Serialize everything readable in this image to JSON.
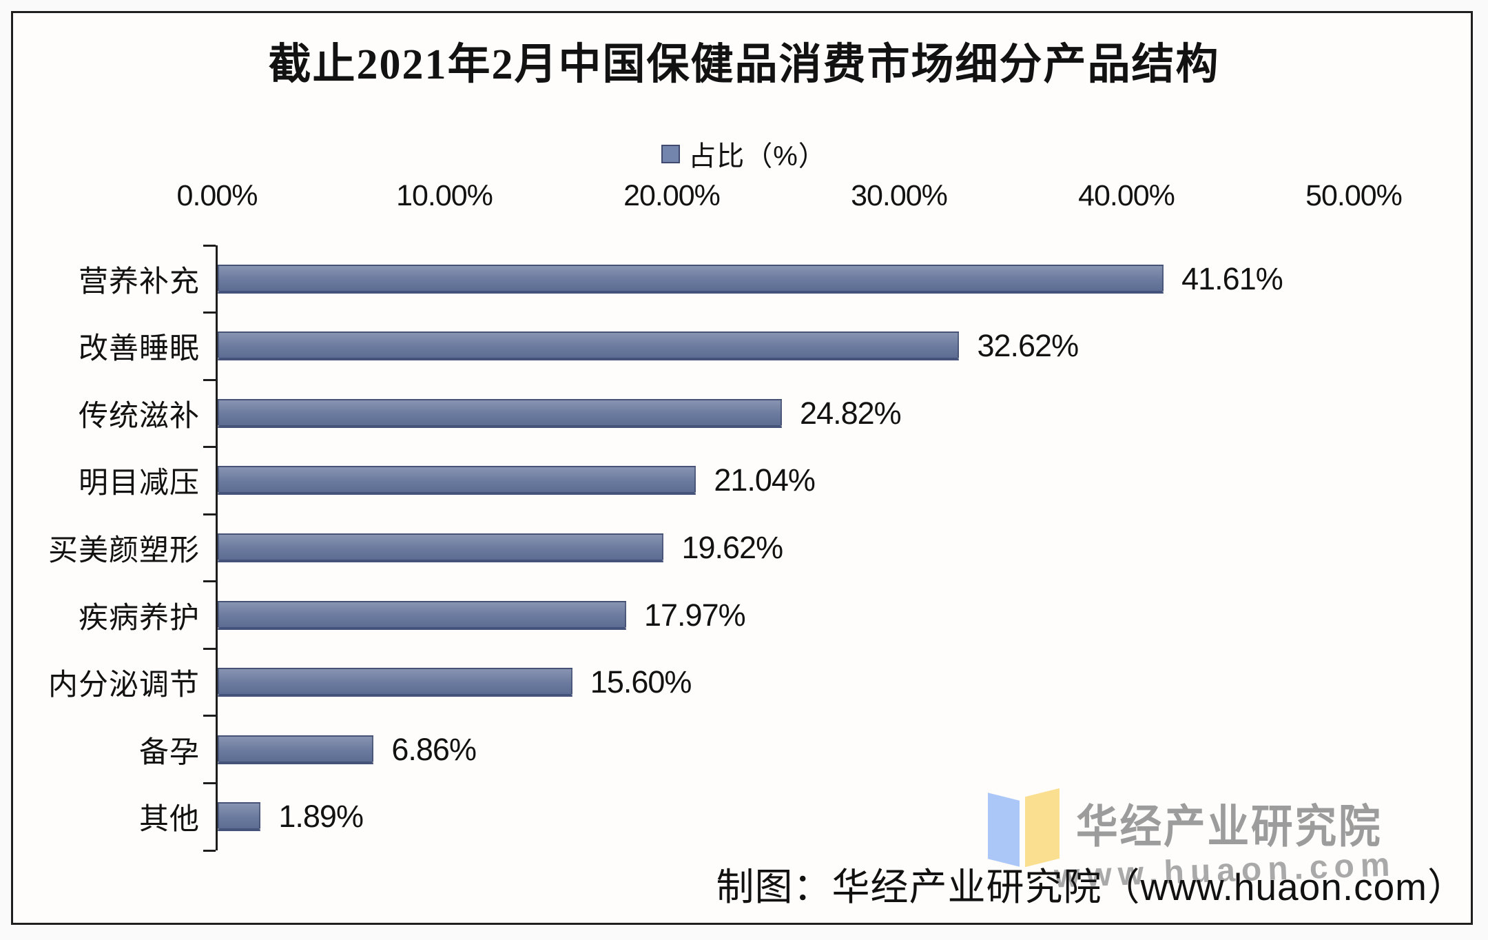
{
  "title": "截止2021年2月中国保健品消费市场细分产品结构",
  "legend": {
    "label": "占比（%）",
    "swatch_color": "#7384ad"
  },
  "chart_data": {
    "type": "bar",
    "orientation": "horizontal",
    "title": "截止2021年2月中国保健品消费市场细分产品结构",
    "legend_entries": [
      "占比（%）"
    ],
    "legend_position": "top",
    "categories": [
      "营养补充",
      "改善睡眠",
      "传统滋补",
      "明目减压",
      "买美颜塑形",
      "疾病养护",
      "内分泌调节",
      "备孕",
      "其他"
    ],
    "values": [
      41.61,
      32.62,
      24.82,
      21.04,
      19.62,
      17.97,
      15.6,
      6.86,
      1.89
    ],
    "value_labels": [
      "41.61%",
      "32.62%",
      "24.82%",
      "21.04%",
      "19.62%",
      "17.97%",
      "15.60%",
      "6.86%",
      "1.89%"
    ],
    "x_ticks": [
      "0.00%",
      "10.00%",
      "20.00%",
      "30.00%",
      "40.00%",
      "50.00%"
    ],
    "xlim": [
      0,
      50
    ],
    "grid": false,
    "bar_color": "#6b7a9e"
  },
  "footer": {
    "attribution": "制图：华经产业研究院（www.huaon.com）"
  },
  "watermark": {
    "org": "华经产业研究院",
    "site": "www.huaon.com",
    "icon": "open-book-icon",
    "icon_colors": {
      "left_page": "#abc7f7",
      "right_page": "#fbdf90"
    }
  }
}
